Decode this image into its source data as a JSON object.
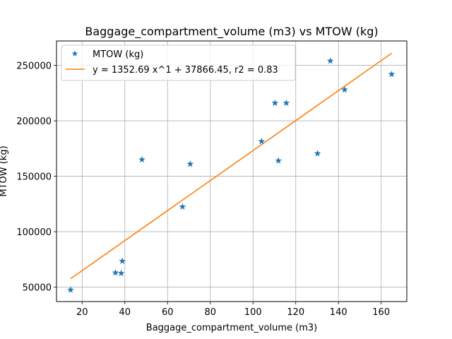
{
  "chart_data": {
    "type": "scatter",
    "title": "Baggage_compartment_volume (m3) vs MTOW (kg)",
    "xlabel": "Baggage_compartment_volume (m3)",
    "ylabel": "MTOW (kg)",
    "xlim": [
      8,
      172
    ],
    "ylim": [
      37000,
      272000
    ],
    "xticks": [
      20,
      40,
      60,
      80,
      100,
      120,
      140,
      160
    ],
    "yticks": [
      50000,
      100000,
      150000,
      200000,
      250000
    ],
    "grid": true,
    "legend": "top-left",
    "series": [
      {
        "name": "MTOW (kg)",
        "marker": "star",
        "color": "#1f77b4",
        "points": [
          {
            "x": 14.6,
            "y": 47500
          },
          {
            "x": 35.6,
            "y": 63000
          },
          {
            "x": 38.3,
            "y": 62500
          },
          {
            "x": 38.8,
            "y": 73500
          },
          {
            "x": 48.0,
            "y": 165000
          },
          {
            "x": 67.0,
            "y": 122500
          },
          {
            "x": 70.6,
            "y": 161000
          },
          {
            "x": 104.0,
            "y": 181500
          },
          {
            "x": 110.3,
            "y": 216000
          },
          {
            "x": 111.9,
            "y": 164000
          },
          {
            "x": 115.6,
            "y": 216000
          },
          {
            "x": 130.2,
            "y": 170500
          },
          {
            "x": 136.2,
            "y": 254000
          },
          {
            "x": 142.9,
            "y": 228000
          },
          {
            "x": 164.9,
            "y": 242000
          }
        ]
      },
      {
        "name": "y = 1352.69 x^1 + 37866.45, r2 = 0.83",
        "type": "line",
        "color": "#ff7f0e",
        "slope": 1352.69,
        "intercept": 37866.45,
        "x_range": [
          14.6,
          164.9
        ]
      }
    ]
  }
}
